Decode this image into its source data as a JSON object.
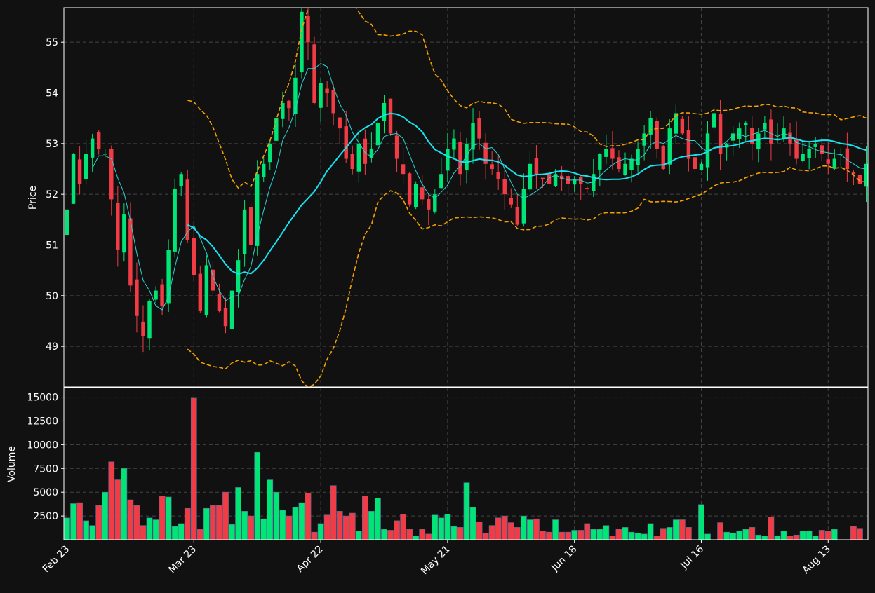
{
  "colors": {
    "background": "#111111",
    "up": "#00e676",
    "down": "#f23c45",
    "grid": "#444444",
    "axis": "#ffffff",
    "ma_fast": "#2bd4d4",
    "ma_slow": "#18e3f0",
    "bollinger": "#f5a000"
  },
  "chart_data": [
    {
      "type": "candlestick",
      "panel": "price",
      "ylabel": "Price",
      "ylim": [
        48.2,
        55.68
      ],
      "yticks": [
        49,
        50,
        51,
        52,
        53,
        54,
        55
      ],
      "grid": true,
      "x_count": 127,
      "x_start_date": "Feb 23",
      "xtick_labels": [
        {
          "index": 0,
          "label": "Feb 23"
        },
        {
          "index": 20,
          "label": "Mar 23"
        },
        {
          "index": 40,
          "label": "Apr 22"
        },
        {
          "index": 60,
          "label": "May 21"
        },
        {
          "index": 80,
          "label": "Jun 18"
        },
        {
          "index": 100,
          "label": "Jul 16"
        },
        {
          "index": 120,
          "label": "Aug 13"
        }
      ],
      "close_profile": [
        [
          0,
          51.7
        ],
        [
          1,
          52.8
        ],
        [
          2,
          52.2
        ],
        [
          3,
          52.8
        ],
        [
          4,
          53.1
        ],
        [
          5,
          52.9
        ],
        [
          6,
          52.8
        ],
        [
          7,
          51.9
        ],
        [
          8,
          50.9
        ],
        [
          9,
          51.6
        ],
        [
          10,
          50.2
        ],
        [
          11,
          49.6
        ],
        [
          12,
          49.2
        ],
        [
          13,
          49.9
        ],
        [
          14,
          50.1
        ],
        [
          15,
          49.8
        ],
        [
          16,
          50.9
        ],
        [
          17,
          52.1
        ],
        [
          18,
          52.4
        ],
        [
          19,
          51.1
        ],
        [
          20,
          50.4
        ],
        [
          21,
          49.7
        ],
        [
          22,
          50.6
        ],
        [
          23,
          50.1
        ],
        [
          24,
          49.7
        ],
        [
          25,
          49.4
        ],
        [
          26,
          50.1
        ],
        [
          27,
          50.7
        ],
        [
          28,
          51.7
        ],
        [
          29,
          51.0
        ],
        [
          30,
          52.4
        ],
        [
          31,
          52.6
        ],
        [
          32,
          53.0
        ],
        [
          33,
          53.5
        ],
        [
          34,
          53.8
        ],
        [
          35,
          53.7
        ],
        [
          36,
          54.3
        ],
        [
          37,
          55.6
        ],
        [
          38,
          55.0
        ],
        [
          39,
          53.8
        ],
        [
          40,
          54.2
        ],
        [
          41,
          54.0
        ],
        [
          42,
          53.6
        ],
        [
          43,
          53.3
        ],
        [
          44,
          52.7
        ],
        [
          45,
          52.5
        ],
        [
          46,
          53.0
        ],
        [
          47,
          52.6
        ],
        [
          48,
          52.9
        ],
        [
          49,
          53.4
        ],
        [
          50,
          53.8
        ],
        [
          51,
          53.2
        ],
        [
          52,
          52.7
        ],
        [
          53,
          52.4
        ],
        [
          54,
          51.8
        ],
        [
          55,
          52.2
        ],
        [
          56,
          51.9
        ],
        [
          57,
          51.7
        ],
        [
          58,
          52.0
        ],
        [
          59,
          52.4
        ],
        [
          60,
          52.9
        ],
        [
          61,
          53.1
        ],
        [
          62,
          52.4
        ],
        [
          63,
          53.0
        ],
        [
          64,
          53.4
        ],
        [
          65,
          53.1
        ],
        [
          66,
          52.6
        ],
        [
          67,
          52.5
        ],
        [
          68,
          52.3
        ],
        [
          69,
          52.0
        ],
        [
          70,
          51.8
        ],
        [
          71,
          51.4
        ],
        [
          72,
          52.1
        ],
        [
          73,
          52.6
        ],
        [
          74,
          52.4
        ],
        [
          75,
          52.3
        ],
        [
          76,
          52.2
        ],
        [
          77,
          52.4
        ],
        [
          78,
          52.3
        ],
        [
          79,
          52.2
        ],
        [
          80,
          52.3
        ],
        [
          81,
          52.2
        ],
        [
          82,
          52.1
        ],
        [
          83,
          52.4
        ],
        [
          84,
          52.8
        ],
        [
          85,
          52.9
        ],
        [
          86,
          52.7
        ],
        [
          87,
          52.5
        ],
        [
          88,
          52.6
        ],
        [
          89,
          52.7
        ],
        [
          90,
          52.9
        ],
        [
          91,
          53.2
        ],
        [
          92,
          53.5
        ],
        [
          93,
          52.9
        ],
        [
          94,
          52.5
        ],
        [
          95,
          53.3
        ],
        [
          96,
          53.6
        ],
        [
          97,
          53.2
        ],
        [
          98,
          52.7
        ],
        [
          99,
          52.5
        ],
        [
          100,
          52.6
        ],
        [
          101,
          53.2
        ],
        [
          102,
          53.6
        ],
        [
          103,
          52.8
        ],
        [
          104,
          53.0
        ],
        [
          105,
          53.2
        ],
        [
          106,
          53.3
        ],
        [
          107,
          53.4
        ],
        [
          108,
          53.0
        ],
        [
          109,
          53.2
        ],
        [
          110,
          53.4
        ],
        [
          111,
          53.0
        ],
        [
          112,
          53.1
        ],
        [
          113,
          53.3
        ],
        [
          114,
          53.0
        ],
        [
          115,
          52.7
        ],
        [
          116,
          52.8
        ],
        [
          117,
          52.9
        ],
        [
          118,
          53.0
        ],
        [
          119,
          52.8
        ],
        [
          120,
          52.6
        ],
        [
          121,
          52.7
        ],
        [
          122,
          52.8
        ],
        [
          123,
          52.5
        ],
        [
          124,
          52.4
        ],
        [
          125,
          52.2
        ],
        [
          126,
          52.6
        ]
      ],
      "moving_averages": [
        {
          "window": 5,
          "color": "#2bd4d4",
          "linewidth": "thin"
        },
        {
          "window": 20,
          "color": "#18e3f0",
          "linewidth": "thick"
        }
      ],
      "bollinger": {
        "window": 20,
        "k": 2,
        "color": "#f5a000",
        "style": "dashed"
      }
    },
    {
      "type": "bar",
      "panel": "volume",
      "ylabel": "Volume",
      "ylim": [
        0,
        16000
      ],
      "yticks": [
        2500,
        5000,
        7500,
        10000,
        12500,
        15000
      ],
      "ytick_labels": [
        "2500",
        "5000",
        "7500",
        "10000",
        "12500",
        "15000"
      ],
      "grid": true,
      "values": [
        2300,
        3800,
        3900,
        2000,
        1500,
        3600,
        5000,
        8200,
        6300,
        7500,
        4200,
        3600,
        1500,
        2300,
        2100,
        4600,
        4500,
        1400,
        1700,
        3300,
        14900,
        1100,
        3300,
        3600,
        3600,
        5000,
        1600,
        5500,
        3000,
        2500,
        9200,
        2200,
        6300,
        5000,
        3100,
        2500,
        3400,
        3900,
        4900,
        800,
        1700,
        2600,
        5700,
        3000,
        2500,
        2800,
        900,
        4600,
        3000,
        4400,
        1100,
        1000,
        2000,
        2700,
        1100,
        400,
        1100,
        600,
        2600,
        2300,
        2700,
        1400,
        1300,
        6000,
        3400,
        1900,
        700,
        1500,
        2300,
        2500,
        1800,
        1300,
        2500,
        2100,
        2200,
        900,
        800,
        2100,
        800,
        800,
        1000,
        1000,
        1700,
        1100,
        1100,
        1500,
        400,
        1100,
        1300,
        800,
        700,
        600,
        1700,
        400,
        1200,
        1300,
        2100,
        2100,
        1300,
        0,
        3700,
        600,
        0,
        1800,
        800,
        700,
        900,
        1100,
        1300,
        500,
        400,
        2400,
        400,
        900,
        400,
        500,
        900,
        900,
        400,
        1000,
        900,
        1100,
        0,
        0,
        1400,
        1200,
        0
      ]
    }
  ]
}
